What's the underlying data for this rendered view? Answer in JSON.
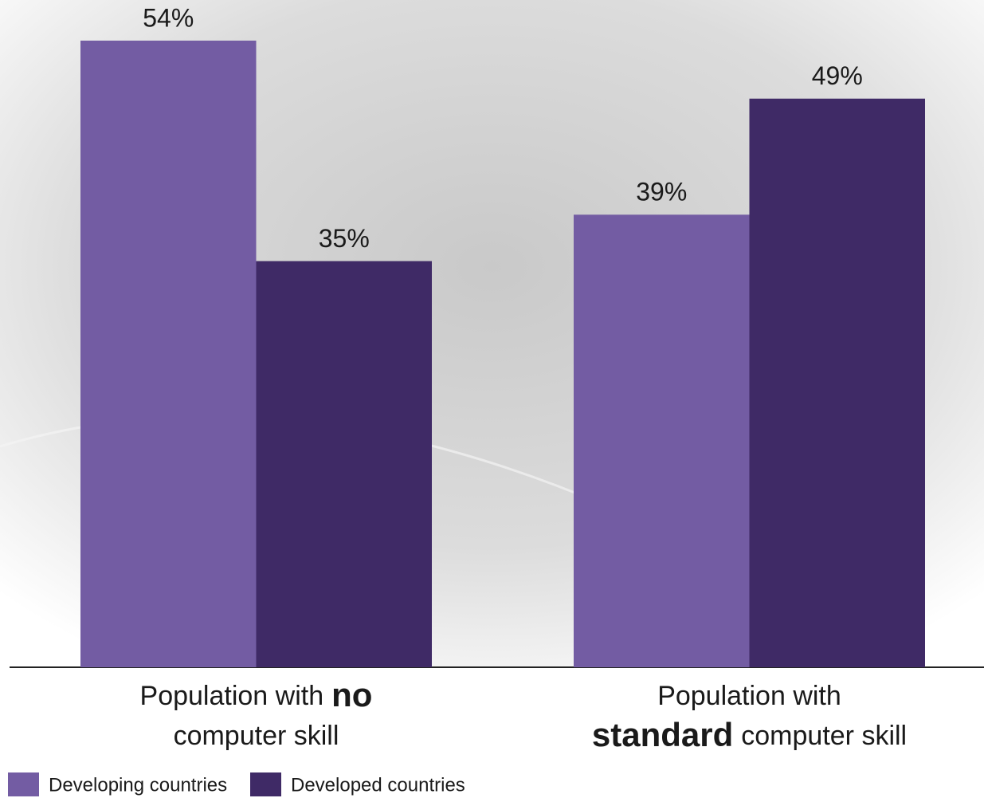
{
  "chart_data": {
    "type": "bar",
    "categories": [
      {
        "lines": [
          [
            {
              "text": "Population with"
            },
            {
              "text": "no",
              "bold": true
            }
          ],
          [
            {
              "text": "computer skill"
            }
          ]
        ]
      },
      {
        "lines": [
          [
            {
              "text": "Population with"
            }
          ],
          [
            {
              "text": "standard",
              "bold": true
            },
            {
              "text": "computer skill"
            }
          ]
        ]
      }
    ],
    "series": [
      {
        "name": "Developing countries",
        "color": "#735ca3",
        "values": [
          54,
          39
        ],
        "value_labels": [
          "54%",
          "39%"
        ]
      },
      {
        "name": "Developed countries",
        "color": "#3f2a66",
        "values": [
          35,
          49
        ],
        "value_labels": [
          "35%",
          "49%"
        ]
      }
    ],
    "ylim": [
      0,
      57.5
    ]
  }
}
